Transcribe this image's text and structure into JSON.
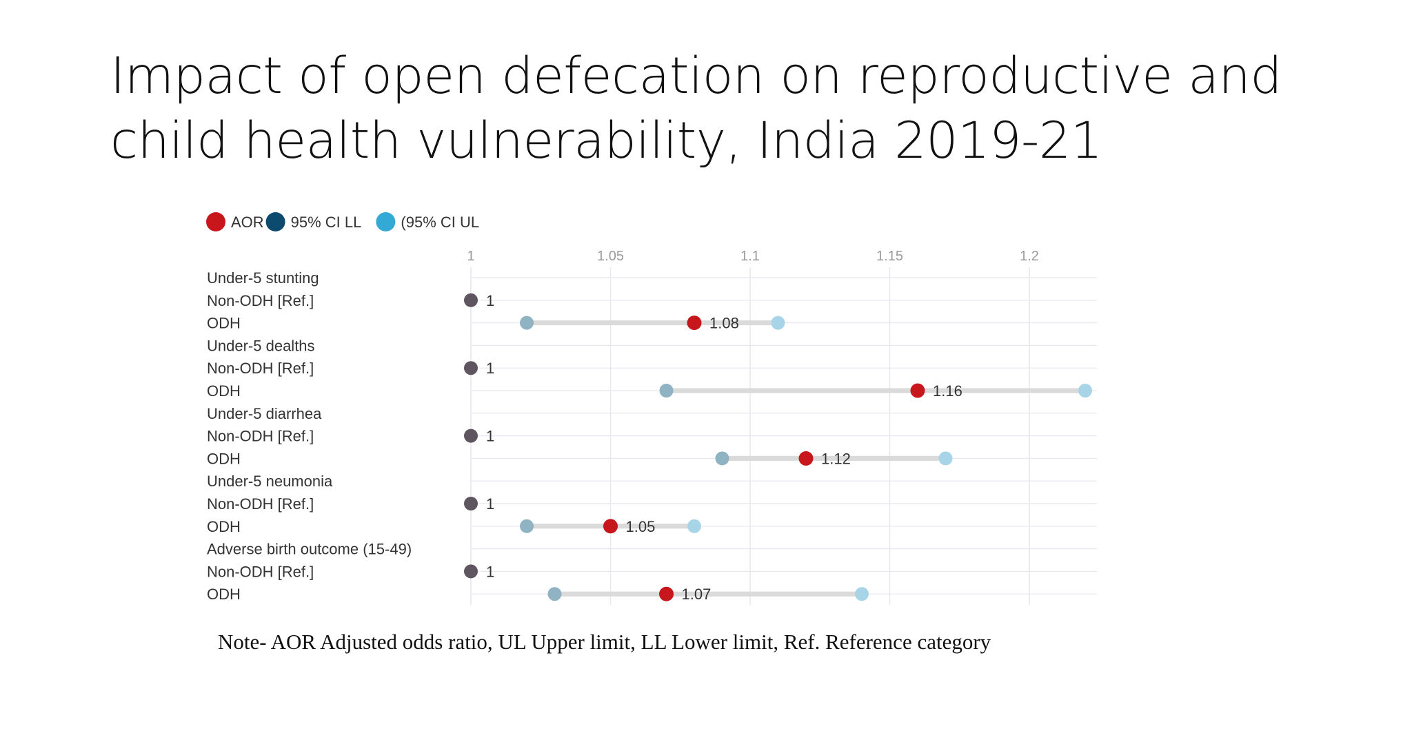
{
  "slide": {
    "title_line1": "Impact of open defecation on reproductive and",
    "title_line2": "child health vulnerability, India 2019-21",
    "note": "Note- AOR Adjusted odds ratio, UL Upper limit, LL Lower limit, Ref. Reference category"
  },
  "colors": {
    "aor": "#c8171c",
    "ci_ll": "#0c4a6e",
    "ci_ul": "#33a9d6",
    "ref_point": "#5f5560",
    "ll_point": "#8fb3c3",
    "ul_point": "#a8d4e8",
    "ci_bar": "#dadada",
    "grid": "#e8e6ee"
  },
  "chart_data": {
    "type": "scatter",
    "subtype": "dumbbell",
    "title": "",
    "xlabel": "",
    "ylabel": "",
    "xlim": [
      1,
      1.22
    ],
    "xticks": [
      {
        "value": 1,
        "label": "1"
      },
      {
        "value": 1.05,
        "label": "1.05"
      },
      {
        "value": 1.1,
        "label": "1.1"
      },
      {
        "value": 1.15,
        "label": "1.15"
      },
      {
        "value": 1.2,
        "label": "1.2"
      }
    ],
    "grid": true,
    "legend": {
      "position": "top-left",
      "items": [
        {
          "label": "AOR",
          "color_key": "aor"
        },
        {
          "label": "95% CI LL",
          "color_key": "ci_ll"
        },
        {
          "label": "(95% CI UL",
          "color_key": "ci_ul"
        }
      ]
    },
    "rows": [
      {
        "label": "Under-5 stunting",
        "kind": "header"
      },
      {
        "label": "Non-ODH [Ref.]",
        "kind": "ref",
        "aor": 1,
        "aor_label": "1"
      },
      {
        "label": "ODH",
        "kind": "est",
        "aor": 1.08,
        "aor_label": "1.08",
        "ll": 1.02,
        "ul": 1.11
      },
      {
        "label": "Under-5 dealths",
        "kind": "header"
      },
      {
        "label": "Non-ODH [Ref.]",
        "kind": "ref",
        "aor": 1,
        "aor_label": "1"
      },
      {
        "label": "ODH",
        "kind": "est",
        "aor": 1.16,
        "aor_label": "1.16",
        "ll": 1.07,
        "ul": 1.22
      },
      {
        "label": "Under-5 diarrhea",
        "kind": "header"
      },
      {
        "label": "Non-ODH [Ref.]",
        "kind": "ref",
        "aor": 1,
        "aor_label": "1"
      },
      {
        "label": "ODH",
        "kind": "est",
        "aor": 1.12,
        "aor_label": "1.12",
        "ll": 1.09,
        "ul": 1.17
      },
      {
        "label": "Under-5 neumonia",
        "kind": "header"
      },
      {
        "label": "Non-ODH [Ref.]",
        "kind": "ref",
        "aor": 1,
        "aor_label": "1"
      },
      {
        "label": "ODH",
        "kind": "est",
        "aor": 1.05,
        "aor_label": "1.05",
        "ll": 1.02,
        "ul": 1.08
      },
      {
        "label": "Adverse birth outcome (15-49)",
        "kind": "header"
      },
      {
        "label": "Non-ODH [Ref.]",
        "kind": "ref",
        "aor": 1,
        "aor_label": "1"
      },
      {
        "label": "ODH",
        "kind": "est",
        "aor": 1.07,
        "aor_label": "1.07",
        "ll": 1.03,
        "ul": 1.14
      }
    ]
  }
}
